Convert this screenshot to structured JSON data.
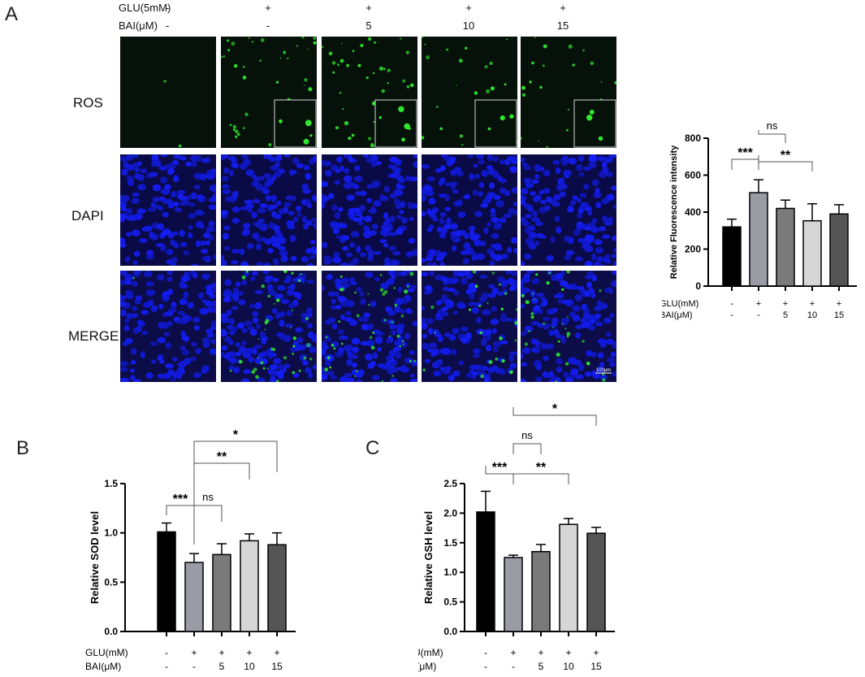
{
  "panel_letters": [
    "A",
    "B",
    "C"
  ],
  "micrograph": {
    "header_rows": [
      {
        "label": "GLU(5mM)",
        "values": [
          "-",
          "+",
          "+",
          "+",
          "+"
        ]
      },
      {
        "label": "BAI(μM)",
        "values": [
          "-",
          "-",
          "5",
          "10",
          "15"
        ]
      }
    ],
    "row_labels": [
      "ROS",
      "DAPI",
      "MERGE"
    ],
    "scale_bar_label": "100μm",
    "colors": {
      "ros": "#2ee62e",
      "dapi": "#1a1ae0",
      "background": "#03080a"
    },
    "ros_level": [
      0.02,
      0.55,
      0.6,
      0.32,
      0.42
    ]
  },
  "conditions": {
    "glu_label": "GLU(mM)",
    "bai_label": "BAI(μM)",
    "bai_label_a": "BAI(μM)",
    "glu": [
      "-",
      "+",
      "+",
      "+",
      "+"
    ],
    "bai": [
      "-",
      "-",
      "5",
      "10",
      "15"
    ]
  },
  "bar_colors": [
    "#000000",
    "#9b9ba6",
    "#7a7a7a",
    "#d6d6d6",
    "#555555"
  ],
  "chart_data": [
    {
      "panel": "A",
      "type": "bar",
      "categories": [
        "-/-",
        "+/-",
        "+/5",
        "+/10",
        "+/15"
      ],
      "values": [
        320,
        505,
        420,
        353,
        390
      ],
      "errors": [
        42,
        70,
        45,
        92,
        50
      ],
      "title": "",
      "xlabel": "",
      "ylabel": "Relative Fluorescence intensity",
      "ylim": [
        0,
        800
      ],
      "yticks": [
        0,
        200,
        400,
        600,
        800
      ],
      "significance": [
        {
          "from": 0,
          "to": 1,
          "label": "***"
        },
        {
          "from": 1,
          "to": 2,
          "label": "ns"
        },
        {
          "from": 1,
          "to": 3,
          "label": "**"
        },
        {
          "from": 1,
          "to": 4,
          "label": "*"
        }
      ]
    },
    {
      "panel": "B",
      "type": "bar",
      "categories": [
        "-/-",
        "+/-",
        "+/5",
        "+/10",
        "+/15"
      ],
      "values": [
        1.01,
        0.7,
        0.78,
        0.92,
        0.88
      ],
      "errors": [
        0.09,
        0.09,
        0.11,
        0.07,
        0.12
      ],
      "title": "",
      "xlabel": "",
      "ylabel": "Relative SOD level",
      "ylim": [
        0,
        1.5
      ],
      "yticks": [
        "0.0",
        "0.5",
        "1.0",
        "1.5"
      ],
      "significance": [
        {
          "from": 0,
          "to": 1,
          "label": "***"
        },
        {
          "from": 1,
          "to": 2,
          "label": "ns"
        },
        {
          "from": 1,
          "to": 3,
          "label": "**"
        },
        {
          "from": 1,
          "to": 4,
          "label": "*"
        }
      ]
    },
    {
      "panel": "C",
      "type": "bar",
      "categories": [
        "-/-",
        "+/-",
        "+/5",
        "+/10",
        "+/15"
      ],
      "values": [
        2.02,
        1.25,
        1.35,
        1.81,
        1.66
      ],
      "errors": [
        0.35,
        0.04,
        0.12,
        0.1,
        0.1
      ],
      "title": "",
      "xlabel": "",
      "ylabel": "Relative GSH level",
      "ylim": [
        0,
        2.5
      ],
      "yticks": [
        "0.0",
        "0.5",
        "1.0",
        "1.5",
        "2.0",
        "2.5"
      ],
      "significance": [
        {
          "from": 0,
          "to": 1,
          "label": "***"
        },
        {
          "from": 1,
          "to": 2,
          "label": "ns"
        },
        {
          "from": 1,
          "to": 3,
          "label": "**"
        },
        {
          "from": 1,
          "to": 4,
          "label": "*"
        }
      ]
    }
  ]
}
